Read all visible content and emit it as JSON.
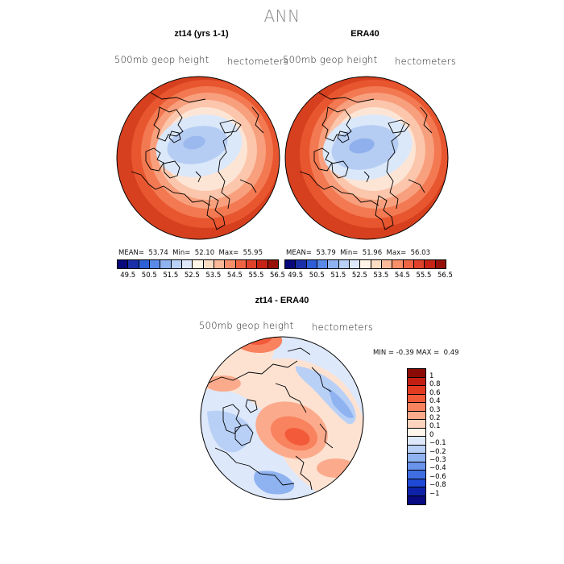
{
  "title": "ANN",
  "panels": [
    {
      "title": "zt14 (yrs 1-1)",
      "variable": "500mb  geop  height",
      "units": "hectometers",
      "stats": {
        "mean_label": "MEAN=",
        "mean": "53.74",
        "min_label": "Min=",
        "min": "52.10",
        "max_label": "Max=",
        "max": "55.95"
      }
    },
    {
      "title": "ERA40",
      "variable": "500mb  geop  height",
      "units": "hectometers",
      "stats": {
        "mean_label": "MEAN=",
        "mean": "53.79",
        "min_label": "Min=",
        "min": "51.96",
        "max_label": "Max=",
        "max": "56.03"
      }
    }
  ],
  "field_colorbar": {
    "ticks": [
      "49.5",
      "50.5",
      "51.5",
      "52.5",
      "53.5",
      "54.5",
      "55.5",
      "56.5"
    ],
    "colors": [
      "#08087a",
      "#1a2fa8",
      "#2f5fd6",
      "#5a8ae8",
      "#8fb2f0",
      "#b9d1f6",
      "#dde9fb",
      "#fff5e6",
      "#fddcc4",
      "#fbb99a",
      "#f78f6b",
      "#ef6443",
      "#e0412a",
      "#c42316",
      "#97110a"
    ]
  },
  "difference": {
    "title": "zt14 - ERA40",
    "variable": "500mb  geop  height",
    "units": "hectometers",
    "min_label": "MIN =",
    "min": "-0.39",
    "max_label": "MAX =",
    "max": "0.49",
    "levels": [
      "1",
      "0.8",
      "0.6",
      "0.4",
      "0.3",
      "0.2",
      "0.1",
      "0",
      "−0.1",
      "−0.2",
      "−0.3",
      "−0.4",
      "−0.6",
      "−0.8",
      "−1"
    ],
    "colors": [
      "#8a0a06",
      "#c21e12",
      "#e33a22",
      "#f25a39",
      "#f9825f",
      "#fbab8c",
      "#fdd3bd",
      "#fff5ea",
      "#dde8fb",
      "#b8d0f6",
      "#8fb3f1",
      "#6a93eb",
      "#3f6ee3",
      "#1e49d6",
      "#0d22a8",
      "#070a80"
    ]
  }
}
